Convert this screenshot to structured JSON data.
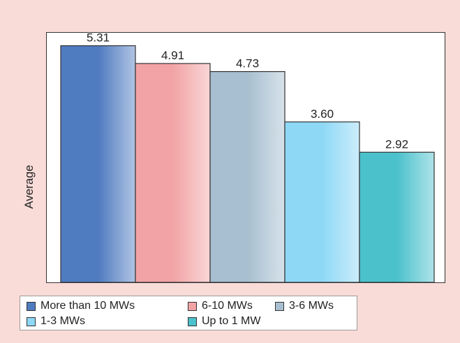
{
  "chart_data": {
    "type": "bar",
    "categories": [
      "More than 10 MWs",
      "6-10 MWs",
      "3-6 MWs",
      "1-3 MWs",
      "Up to 1 MW"
    ],
    "values": [
      5.31,
      4.91,
      4.73,
      3.6,
      2.92
    ],
    "data_labels": [
      "5.31",
      "4.91",
      "4.73",
      "3.60",
      "2.92"
    ],
    "title": "",
    "xlabel": "",
    "ylabel": "Average",
    "ylim": [
      0,
      5.6
    ],
    "grid": false,
    "legend_placement": "bottom-left",
    "legend": [
      {
        "label": "More than 10 MWs",
        "color": "#4f7bc0"
      },
      {
        "label": "6-10 MWs",
        "color": "#f2a3a5"
      },
      {
        "label": "3-6 MWs",
        "color": "#a7bfd0"
      },
      {
        "label": "1-3 MWs",
        "color": "#8ed8f6"
      },
      {
        "label": "Up to 1 MW",
        "color": "#4bc1cc"
      }
    ],
    "colors": {
      "background": "#f9dcd8",
      "bar_outline": "#333333"
    }
  }
}
